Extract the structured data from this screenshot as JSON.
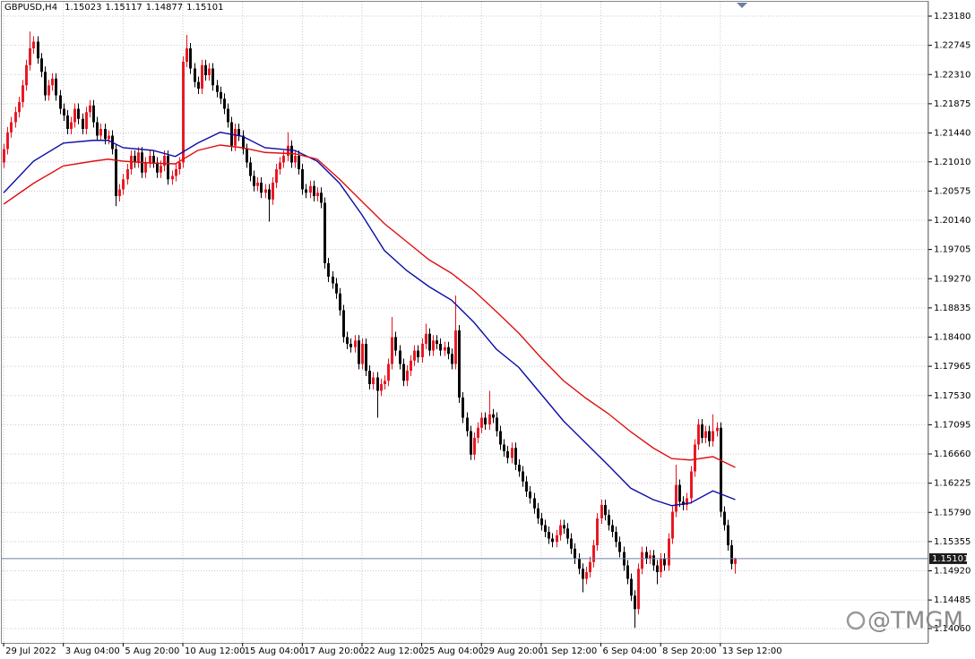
{
  "chart_data": {
    "type": "candlestick",
    "title": "GBPUSD,H4",
    "watermark": "@TMGM",
    "up_color": "#e8141f",
    "down_color": "#000000",
    "grid": true,
    "xlim": [
      -0.5,
      247.5
    ],
    "ylim": [
      1.1382,
      1.2342
    ],
    "xticks": [
      {
        "value": 0,
        "label": "29 Jul 2022"
      },
      {
        "value": 16,
        "label": "3 Aug 04:00"
      },
      {
        "value": 32,
        "label": "5 Aug 20:00"
      },
      {
        "value": 48,
        "label": "10 Aug 12:00"
      },
      {
        "value": 64,
        "label": "15 Aug 04:00"
      },
      {
        "value": 80,
        "label": "17 Aug 20:00"
      },
      {
        "value": 96,
        "label": "22 Aug 12:00"
      },
      {
        "value": 112,
        "label": "25 Aug 04:00"
      },
      {
        "value": 128,
        "label": "29 Aug 20:00"
      },
      {
        "value": 144,
        "label": "1 Sep 12:00"
      },
      {
        "value": 160,
        "label": "6 Sep 04:00"
      },
      {
        "value": 176,
        "label": "8 Sep 20:00"
      },
      {
        "value": 192,
        "label": "13 Sep 12:00"
      }
    ],
    "yticks": [
      {
        "value": 1.2318,
        "label": "1.23180"
      },
      1.22745,
      {
        "value": 1.2231,
        "label": "1.22310"
      },
      1.21875,
      {
        "value": 1.2144,
        "label": "1.21440"
      },
      {
        "value": 1.2101,
        "label": "1.21010"
      },
      1.20575,
      {
        "value": 1.2014,
        "label": "1.20140"
      },
      1.19705,
      {
        "value": 1.1927,
        "label": "1.19270"
      },
      1.18835,
      {
        "value": 1.184,
        "label": "1.18400"
      },
      1.17965,
      {
        "value": 1.1753,
        "label": "1.17530"
      },
      1.17095,
      {
        "value": 1.1666,
        "label": "1.16660"
      },
      1.16225,
      {
        "value": 1.1579,
        "label": "1.15790"
      },
      1.15355,
      {
        "value": 1.1492,
        "label": "1.14920"
      },
      1.14485,
      {
        "value": 1.1406,
        "label": "1.14060"
      }
    ],
    "open": [
      1.21,
      1.212,
      1.2145,
      1.216,
      1.2175,
      1.219,
      1.2215,
      1.2245,
      1.227,
      1.228,
      1.2255,
      1.2235,
      1.22,
      1.2215,
      1.2225,
      1.22,
      1.218,
      1.217,
      1.215,
      1.216,
      1.218,
      1.2165,
      1.215,
      1.2175,
      1.2185,
      1.216,
      1.214,
      1.215,
      1.2135,
      1.214,
      1.212,
      1.205,
      1.206,
      1.2075,
      1.209,
      1.211,
      1.21,
      1.2115,
      1.2085,
      1.21,
      1.211,
      1.21,
      1.2085,
      1.2095,
      1.211,
      1.2075,
      1.208,
      1.209,
      1.21,
      1.225,
      1.227,
      1.224,
      1.222,
      1.221,
      1.2245,
      1.223,
      1.224,
      1.2215,
      1.2205,
      1.2195,
      1.218,
      1.216,
      1.2125,
      1.215,
      1.214,
      1.212,
      1.21,
      1.208,
      1.2065,
      1.207,
      1.2055,
      1.206,
      1.2045,
      1.207,
      1.209,
      1.21,
      1.211,
      1.2125,
      1.21,
      1.211,
      1.209,
      1.206,
      1.2055,
      1.2065,
      1.205,
      1.2055,
      1.204,
      1.195,
      1.193,
      1.192,
      1.1905,
      1.188,
      1.184,
      1.183,
      1.1825,
      1.1835,
      1.18,
      1.183,
      1.179,
      1.177,
      1.178,
      1.176,
      1.177,
      1.1775,
      1.18,
      1.184,
      1.182,
      1.18,
      1.1775,
      1.179,
      1.1805,
      1.182,
      1.181,
      1.183,
      1.1845,
      1.182,
      1.1835,
      1.183,
      1.182,
      1.1825,
      1.1815,
      1.18,
      1.185,
      1.175,
      1.172,
      1.17,
      1.1665,
      1.169,
      1.1705,
      1.172,
      1.171,
      1.1725,
      1.172,
      1.17,
      1.168,
      1.167,
      1.166,
      1.1675,
      1.165,
      1.164,
      1.1625,
      1.161,
      1.16,
      1.1585,
      1.157,
      1.156,
      1.155,
      1.154,
      1.1535,
      1.1545,
      1.156,
      1.1555,
      1.154,
      1.1525,
      1.151,
      1.1495,
      1.148,
      1.149,
      1.1505,
      1.153,
      1.157,
      1.159,
      1.1575,
      1.156,
      1.155,
      1.1535,
      1.152,
      1.15,
      1.148,
      1.1455,
      1.1435,
      1.1495,
      1.152,
      1.151,
      1.1515,
      1.15,
      1.149,
      1.151,
      1.15,
      1.154,
      1.158,
      1.162,
      1.1595,
      1.159,
      1.16,
      1.164,
      1.168,
      1.171,
      1.169,
      1.17,
      1.1685,
      1.17,
      1.1705,
      1.158,
      1.156,
      1.153,
      1.15023
    ],
    "high": [
      1.2128,
      1.2153,
      1.2168,
      1.2183,
      1.2198,
      1.2223,
      1.2253,
      1.2295,
      1.2288,
      1.2288,
      1.2263,
      1.2243,
      1.2223,
      1.2233,
      1.2233,
      1.2208,
      1.2188,
      1.2178,
      1.2168,
      1.2188,
      1.2188,
      1.2173,
      1.2183,
      1.2193,
      1.2193,
      1.2168,
      1.2158,
      1.2158,
      1.2148,
      1.2148,
      1.2128,
      1.2068,
      1.2083,
      1.2098,
      1.2118,
      1.2118,
      1.2123,
      1.2123,
      1.2108,
      1.2118,
      1.2118,
      1.2108,
      1.2103,
      1.2118,
      1.2118,
      1.2088,
      1.2098,
      1.2108,
      1.2258,
      1.229,
      1.2278,
      1.2248,
      1.2228,
      1.2253,
      1.2253,
      1.2248,
      1.2248,
      1.2223,
      1.2213,
      1.2203,
      1.2188,
      1.2168,
      1.2158,
      1.2158,
      1.2148,
      1.2128,
      1.2108,
      1.2088,
      1.2078,
      1.2078,
      1.2068,
      1.2068,
      1.2078,
      1.2098,
      1.2108,
      1.2118,
      1.2145,
      1.2133,
      1.2118,
      1.2118,
      1.2098,
      1.2068,
      1.2073,
      1.2073,
      1.2063,
      1.2063,
      1.2048,
      1.1958,
      1.1938,
      1.1928,
      1.1913,
      1.1888,
      1.1848,
      1.1838,
      1.1843,
      1.1843,
      1.1838,
      1.1838,
      1.1798,
      1.1788,
      1.1788,
      1.1778,
      1.1783,
      1.1808,
      1.187,
      1.1848,
      1.1828,
      1.1808,
      1.1798,
      1.1813,
      1.1828,
      1.1828,
      1.1838,
      1.186,
      1.1853,
      1.1843,
      1.1843,
      1.1838,
      1.1833,
      1.1833,
      1.1823,
      1.1902,
      1.1858,
      1.1758,
      1.1728,
      1.1708,
      1.1698,
      1.1713,
      1.1728,
      1.1728,
      1.176,
      1.1733,
      1.1728,
      1.1708,
      1.1688,
      1.1678,
      1.1683,
      1.1683,
      1.1658,
      1.1648,
      1.1633,
      1.1618,
      1.1608,
      1.1593,
      1.1578,
      1.1568,
      1.1558,
      1.1548,
      1.1553,
      1.1568,
      1.1568,
      1.1563,
      1.1548,
      1.1533,
      1.1518,
      1.1503,
      1.1498,
      1.1513,
      1.1538,
      1.1578,
      1.1598,
      1.1598,
      1.1583,
      1.1568,
      1.1558,
      1.1543,
      1.1528,
      1.1508,
      1.1488,
      1.1463,
      1.1503,
      1.1528,
      1.1528,
      1.1523,
      1.1523,
      1.1508,
      1.1518,
      1.1518,
      1.1548,
      1.1588,
      1.165,
      1.1628,
      1.1603,
      1.1608,
      1.1648,
      1.1688,
      1.1718,
      1.1718,
      1.1708,
      1.1708,
      1.1725,
      1.1713,
      1.1713,
      1.1588,
      1.1568,
      1.1538,
      1.15117
    ],
    "low": [
      1.2092,
      1.2112,
      1.2137,
      1.2152,
      1.2167,
      1.2182,
      1.2207,
      1.2237,
      1.2262,
      1.2247,
      1.2227,
      1.2192,
      1.2192,
      1.2207,
      1.2192,
      1.2172,
      1.2162,
      1.2142,
      1.2142,
      1.2152,
      1.2157,
      1.2142,
      1.2142,
      1.2167,
      1.2152,
      1.2132,
      1.2132,
      1.2127,
      1.2127,
      1.2112,
      1.2035,
      1.2042,
      1.2052,
      1.2067,
      1.2082,
      1.2092,
      1.2092,
      1.2077,
      1.2077,
      1.2092,
      1.2092,
      1.2077,
      1.2077,
      1.2087,
      1.2067,
      1.2067,
      1.2072,
      1.2082,
      1.2092,
      1.2242,
      1.2232,
      1.2212,
      1.2202,
      1.2202,
      1.2222,
      1.2222,
      1.2207,
      1.2197,
      1.2187,
      1.2172,
      1.2152,
      1.2117,
      1.2117,
      1.2132,
      1.2112,
      1.2092,
      1.2072,
      1.2057,
      1.2057,
      1.2047,
      1.2047,
      1.2012,
      1.2037,
      1.2062,
      1.2082,
      1.2092,
      1.2102,
      1.2092,
      1.2092,
      1.2082,
      1.2052,
      1.2047,
      1.2047,
      1.2042,
      1.2042,
      1.2032,
      1.1942,
      1.1922,
      1.1912,
      1.1897,
      1.1872,
      1.1832,
      1.1822,
      1.1817,
      1.1817,
      1.1792,
      1.1792,
      1.1782,
      1.1762,
      1.1762,
      1.172,
      1.1752,
      1.1762,
      1.1767,
      1.1792,
      1.1812,
      1.1792,
      1.1767,
      1.1767,
      1.1782,
      1.1797,
      1.1802,
      1.1802,
      1.1822,
      1.1812,
      1.1812,
      1.1822,
      1.1812,
      1.1812,
      1.1807,
      1.1792,
      1.1792,
      1.1742,
      1.1712,
      1.1692,
      1.1657,
      1.1657,
      1.1682,
      1.1697,
      1.1702,
      1.1702,
      1.1712,
      1.1692,
      1.1672,
      1.1662,
      1.1652,
      1.1652,
      1.1642,
      1.1632,
      1.1617,
      1.1602,
      1.1592,
      1.1577,
      1.1562,
      1.1552,
      1.1542,
      1.1532,
      1.1527,
      1.1527,
      1.1537,
      1.1547,
      1.1532,
      1.1517,
      1.1502,
      1.1487,
      1.146,
      1.1472,
      1.1482,
      1.1497,
      1.1522,
      1.1562,
      1.1567,
      1.1552,
      1.1542,
      1.1527,
      1.1512,
      1.1492,
      1.1472,
      1.1447,
      1.1407,
      1.1427,
      1.1487,
      1.1502,
      1.1502,
      1.1492,
      1.1472,
      1.1482,
      1.1492,
      1.1492,
      1.1532,
      1.1572,
      1.1587,
      1.1582,
      1.1582,
      1.1592,
      1.1632,
      1.1672,
      1.1682,
      1.1682,
      1.1677,
      1.1677,
      1.1692,
      1.1572,
      1.1552,
      1.1522,
      1.1494,
      1.14877
    ],
    "close": [
      1.212,
      1.2145,
      1.216,
      1.2175,
      1.219,
      1.2215,
      1.2245,
      1.227,
      1.228,
      1.2255,
      1.2235,
      1.22,
      1.2215,
      1.2225,
      1.22,
      1.218,
      1.217,
      1.215,
      1.216,
      1.218,
      1.2165,
      1.215,
      1.2175,
      1.2185,
      1.216,
      1.214,
      1.215,
      1.2135,
      1.214,
      1.212,
      1.205,
      1.206,
      1.2075,
      1.209,
      1.211,
      1.21,
      1.2115,
      1.2085,
      1.21,
      1.211,
      1.21,
      1.2085,
      1.2095,
      1.211,
      1.2075,
      1.208,
      1.209,
      1.21,
      1.225,
      1.227,
      1.224,
      1.222,
      1.221,
      1.2245,
      1.223,
      1.224,
      1.2215,
      1.2205,
      1.2195,
      1.218,
      1.216,
      1.2125,
      1.215,
      1.214,
      1.212,
      1.21,
      1.208,
      1.2065,
      1.207,
      1.2055,
      1.206,
      1.2045,
      1.207,
      1.209,
      1.21,
      1.211,
      1.2125,
      1.21,
      1.211,
      1.209,
      1.206,
      1.2055,
      1.2065,
      1.205,
      1.2055,
      1.204,
      1.195,
      1.193,
      1.192,
      1.1905,
      1.188,
      1.184,
      1.183,
      1.1825,
      1.1835,
      1.18,
      1.183,
      1.179,
      1.177,
      1.178,
      1.176,
      1.177,
      1.1775,
      1.18,
      1.184,
      1.182,
      1.18,
      1.1775,
      1.179,
      1.1805,
      1.182,
      1.181,
      1.183,
      1.1845,
      1.182,
      1.1835,
      1.183,
      1.182,
      1.1825,
      1.1815,
      1.18,
      1.185,
      1.175,
      1.172,
      1.17,
      1.1665,
      1.169,
      1.1705,
      1.172,
      1.171,
      1.1725,
      1.172,
      1.17,
      1.168,
      1.167,
      1.166,
      1.1675,
      1.165,
      1.164,
      1.1625,
      1.161,
      1.16,
      1.1585,
      1.157,
      1.156,
      1.155,
      1.154,
      1.1535,
      1.1545,
      1.156,
      1.1555,
      1.154,
      1.1525,
      1.151,
      1.1495,
      1.148,
      1.149,
      1.1505,
      1.153,
      1.157,
      1.159,
      1.1575,
      1.156,
      1.155,
      1.1535,
      1.152,
      1.15,
      1.148,
      1.1455,
      1.1435,
      1.1495,
      1.152,
      1.151,
      1.1515,
      1.15,
      1.149,
      1.151,
      1.15,
      1.154,
      1.158,
      1.162,
      1.1595,
      1.159,
      1.16,
      1.164,
      1.168,
      1.171,
      1.169,
      1.17,
      1.1685,
      1.17,
      1.1705,
      1.158,
      1.156,
      1.153,
      1.15023,
      1.15101
    ],
    "series": [
      {
        "color": "#0b0ba8",
        "x": [
          0,
          8,
          16,
          24,
          28,
          32,
          40,
          46,
          52,
          58,
          64,
          70,
          78,
          84,
          90,
          96,
          102,
          108,
          114,
          120,
          126,
          132,
          138,
          144,
          150,
          156,
          162,
          168,
          174,
          179,
          184,
          190,
          196
        ],
        "values": [
          1.2055,
          1.2102,
          1.2129,
          1.2133,
          1.2133,
          1.2122,
          1.2118,
          1.2109,
          1.2129,
          1.2145,
          1.2139,
          1.2122,
          1.2118,
          1.2102,
          1.2069,
          1.2022,
          1.1969,
          1.1939,
          1.1915,
          1.1895,
          1.1862,
          1.1822,
          1.1795,
          1.1755,
          1.1715,
          1.1682,
          1.1649,
          1.1615,
          1.1598,
          1.1589,
          1.1593,
          1.1611,
          1.1598
        ]
      },
      {
        "color": "#e01010",
        "x": [
          0,
          8,
          16,
          24,
          28,
          32,
          40,
          46,
          52,
          58,
          64,
          70,
          78,
          84,
          90,
          96,
          102,
          108,
          114,
          120,
          126,
          132,
          138,
          144,
          150,
          156,
          162,
          168,
          174,
          179,
          184,
          190,
          196
        ],
        "values": [
          1.2038,
          1.2069,
          1.2095,
          1.2102,
          1.2105,
          1.2102,
          1.2099,
          1.2098,
          1.2118,
          1.2126,
          1.2122,
          1.2115,
          1.2113,
          1.2105,
          1.2075,
          1.2042,
          1.2009,
          1.1982,
          1.1955,
          1.1935,
          1.1909,
          1.1878,
          1.1846,
          1.1809,
          1.1775,
          1.1749,
          1.1726,
          1.1699,
          1.1675,
          1.1659,
          1.1657,
          1.1662,
          1.1646
        ]
      }
    ]
  }
}
